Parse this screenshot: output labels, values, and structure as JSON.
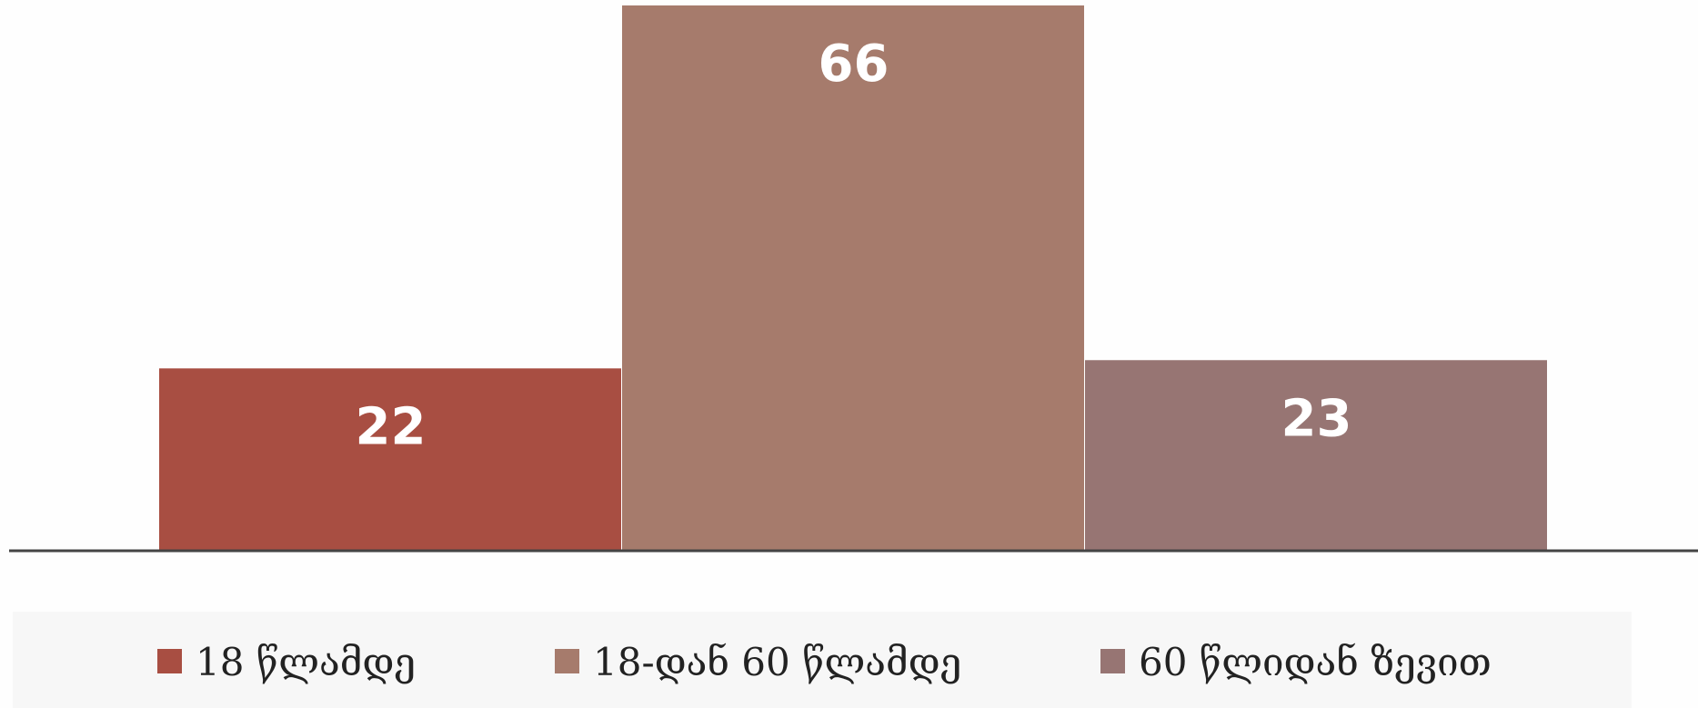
{
  "chart_data": {
    "type": "bar",
    "categories": [
      "18 წლამდე",
      "18-დან 60 წლამდე",
      "60 წლიდან ზევით"
    ],
    "values": [
      22,
      66,
      23
    ],
    "colors": [
      "#a84e42",
      "#a67b6c",
      "#977573"
    ],
    "ylim": [
      0,
      66
    ],
    "grid": false,
    "legend_position": "bottom",
    "data_labels": true
  }
}
